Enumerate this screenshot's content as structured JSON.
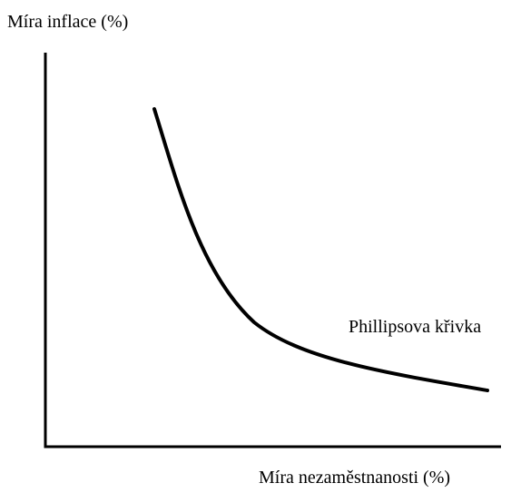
{
  "y_axis_label": "Míra inflace (%)",
  "x_axis_label": "Míra nezaměstnanosti (%)",
  "curve_label": "Phillipsova křivka"
}
